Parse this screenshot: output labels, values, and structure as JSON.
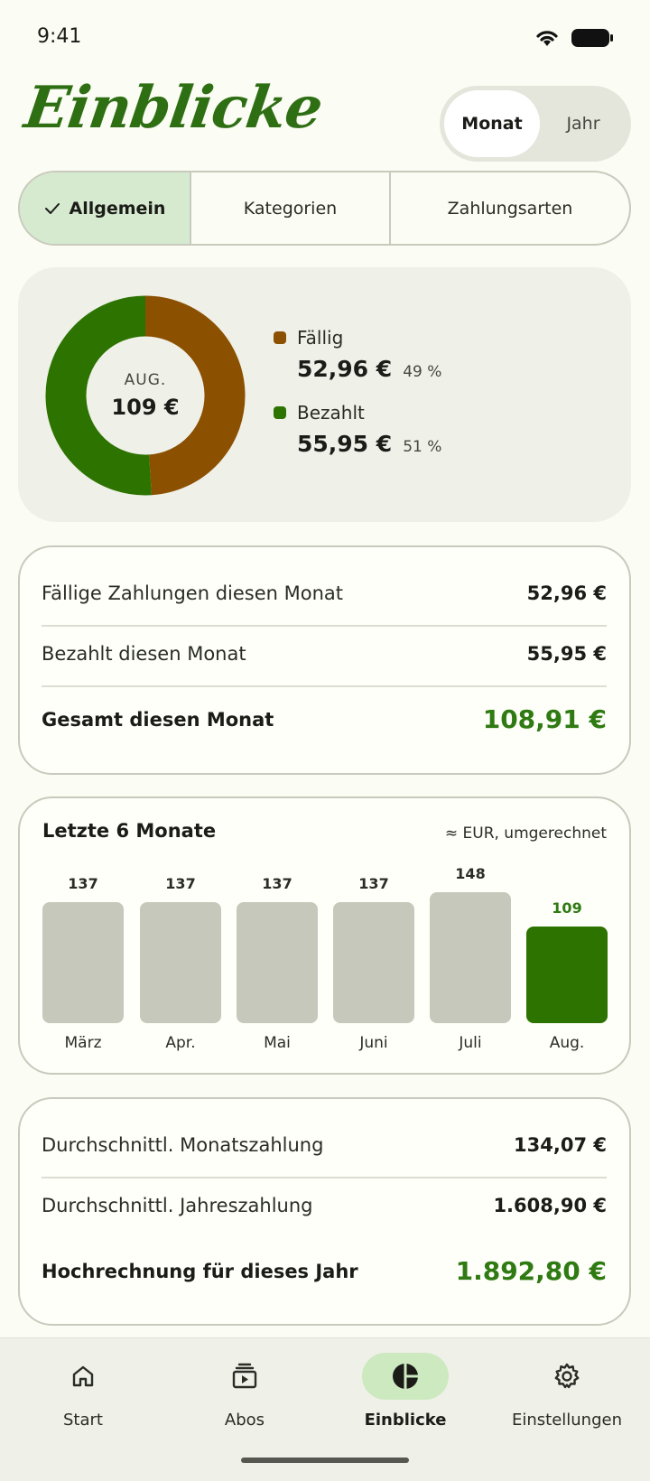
{
  "status_bar": {
    "time": "9:41"
  },
  "header": {
    "title": "Einblicke",
    "period_options": [
      "Monat",
      "Jahr"
    ],
    "selected_period": "Monat"
  },
  "tabs": [
    {
      "label": "Allgemein",
      "active": true
    },
    {
      "label": "Kategorien",
      "active": false
    },
    {
      "label": "Zahlungsarten",
      "active": false
    }
  ],
  "donut": {
    "month": "AUG.",
    "total": "109 €",
    "segments": [
      {
        "label": "Fällig",
        "amount": "52,96 €",
        "percent": "49 %",
        "fraction": 0.49,
        "color": "#8b5000"
      },
      {
        "label": "Bezahlt",
        "amount": "55,95 €",
        "percent": "51 %",
        "fraction": 0.51,
        "color": "#2c7300"
      }
    ]
  },
  "summary_month": {
    "rows": [
      {
        "label": "Fällige Zahlungen diesen Monat",
        "value": "52,96 €"
      },
      {
        "label": "Bezahlt diesen Monat",
        "value": "55,95 €"
      }
    ],
    "total": {
      "label": "Gesamt diesen Monat",
      "value": "108,91 €"
    }
  },
  "chart_data": {
    "type": "bar",
    "title": "Letzte 6 Monate",
    "note": "≈ EUR, umgerechnet",
    "categories": [
      "März",
      "Apr.",
      "Mai",
      "Juni",
      "Juli",
      "Aug."
    ],
    "values": [
      137,
      137,
      137,
      137,
      148,
      109
    ],
    "highlight_index": 5,
    "colors": {
      "default": "#c6c8bb",
      "highlight": "#2c7300"
    }
  },
  "summary_year": {
    "rows": [
      {
        "label": "Durchschnittl. Monatszahlung",
        "value": "134,07 €"
      },
      {
        "label": "Durchschnittl. Jahreszahlung",
        "value": "1.608,90 €"
      }
    ],
    "total": {
      "label": "Hochrechnung für dieses Jahr",
      "value": "1.892,80 €"
    }
  },
  "bottom_nav": {
    "items": [
      {
        "label": "Start",
        "icon": "home-icon",
        "active": false
      },
      {
        "label": "Abos",
        "icon": "subscriptions-icon",
        "active": false
      },
      {
        "label": "Einblicke",
        "icon": "insights-pie-icon",
        "active": true
      },
      {
        "label": "Einstellungen",
        "icon": "gear-icon",
        "active": false
      }
    ]
  },
  "colors": {
    "accent": "#2f7a12",
    "due": "#8b5000",
    "paid": "#2c7300",
    "background": "#fbfcf3"
  }
}
